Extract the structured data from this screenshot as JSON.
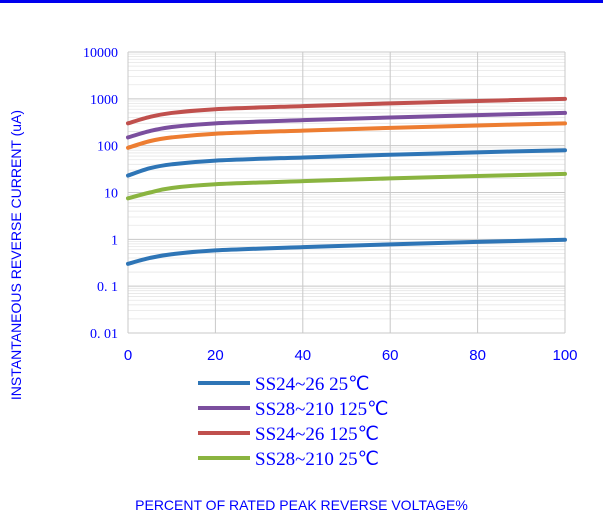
{
  "chart_data": {
    "type": "line",
    "xlabel": "PERCENT OF RATED PEAK REVERSE VOLTAGE%",
    "ylabel": "INSTANTANEOUS REVERSE CURRENT (uA)",
    "x_ticks": [
      "0",
      "20",
      "40",
      "60",
      "80",
      "100"
    ],
    "y_ticks": [
      "0. 01",
      "0. 1",
      "1",
      "10",
      "100",
      "1000",
      "10000"
    ],
    "xlim": [
      0,
      100
    ],
    "ylim": [
      0.01,
      10000
    ],
    "y_scale": "log",
    "grid": true,
    "legend_position": "bottom-center",
    "legend_order": [
      0,
      3,
      1,
      2
    ],
    "x": [
      0,
      5,
      10,
      20,
      40,
      60,
      80,
      100
    ],
    "series": [
      {
        "name": "SS24~26  25℃",
        "color": "#2e75b6",
        "values": [
          23,
          33,
          40,
          48,
          56,
          64,
          72,
          80
        ]
      },
      {
        "name": "SS24~26  125℃",
        "color": "#c0504d",
        "values": [
          300,
          410,
          500,
          600,
          700,
          800,
          900,
          1000
        ]
      },
      {
        "name": "SS28~210  25℃",
        "color": "#8ab440",
        "values": [
          7.5,
          10,
          12.5,
          15,
          17.5,
          20,
          22.5,
          25
        ]
      },
      {
        "name": "SS28~210  125℃",
        "color": "#7b4f9e",
        "values": [
          150,
          205,
          250,
          300,
          350,
          400,
          450,
          500
        ]
      },
      {
        "name": "",
        "color": "#ed7d31",
        "values": [
          90,
          125,
          150,
          180,
          210,
          240,
          270,
          300
        ]
      },
      {
        "name": "",
        "color": "#2e75b6",
        "values": [
          0.3,
          0.4,
          0.48,
          0.58,
          0.68,
          0.78,
          0.88,
          0.98
        ]
      }
    ]
  }
}
